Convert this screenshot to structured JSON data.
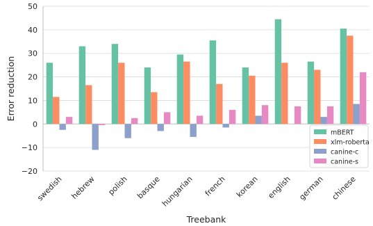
{
  "chart_data": {
    "type": "bar",
    "xlabel": "Treebank",
    "ylabel": "Error reduction",
    "ylim": [
      -20,
      50
    ],
    "yticks": [
      -20,
      -10,
      0,
      10,
      20,
      30,
      40,
      50
    ],
    "ytick_labels": [
      "−20",
      "−10",
      "0",
      "10",
      "20",
      "30",
      "40",
      "50"
    ],
    "grid": true,
    "legend_position": "bottom-right",
    "categories": [
      "swedish",
      "hebrew",
      "polish",
      "basque",
      "hungarian",
      "french",
      "korean",
      "english",
      "german",
      "chinese"
    ],
    "series": [
      {
        "name": "mBERT",
        "color": "#66c2a5",
        "values": [
          26,
          33,
          34,
          24,
          29.5,
          35.5,
          24,
          44.5,
          26.5,
          40.5
        ]
      },
      {
        "name": "xlm-roberta",
        "color": "#fc8d62",
        "values": [
          11.5,
          16.5,
          26,
          13.5,
          26.5,
          17,
          20.5,
          26,
          23,
          37.5
        ]
      },
      {
        "name": "canine-c",
        "color": "#8da0cb",
        "values": [
          -2.5,
          -11,
          -6,
          -3,
          -5.5,
          -1.5,
          3.5,
          0,
          3,
          8.5
        ]
      },
      {
        "name": "canine-s",
        "color": "#e78ac3",
        "values": [
          3,
          -0.5,
          2.5,
          5,
          3.5,
          6,
          8,
          7.5,
          7.5,
          22
        ]
      }
    ]
  }
}
